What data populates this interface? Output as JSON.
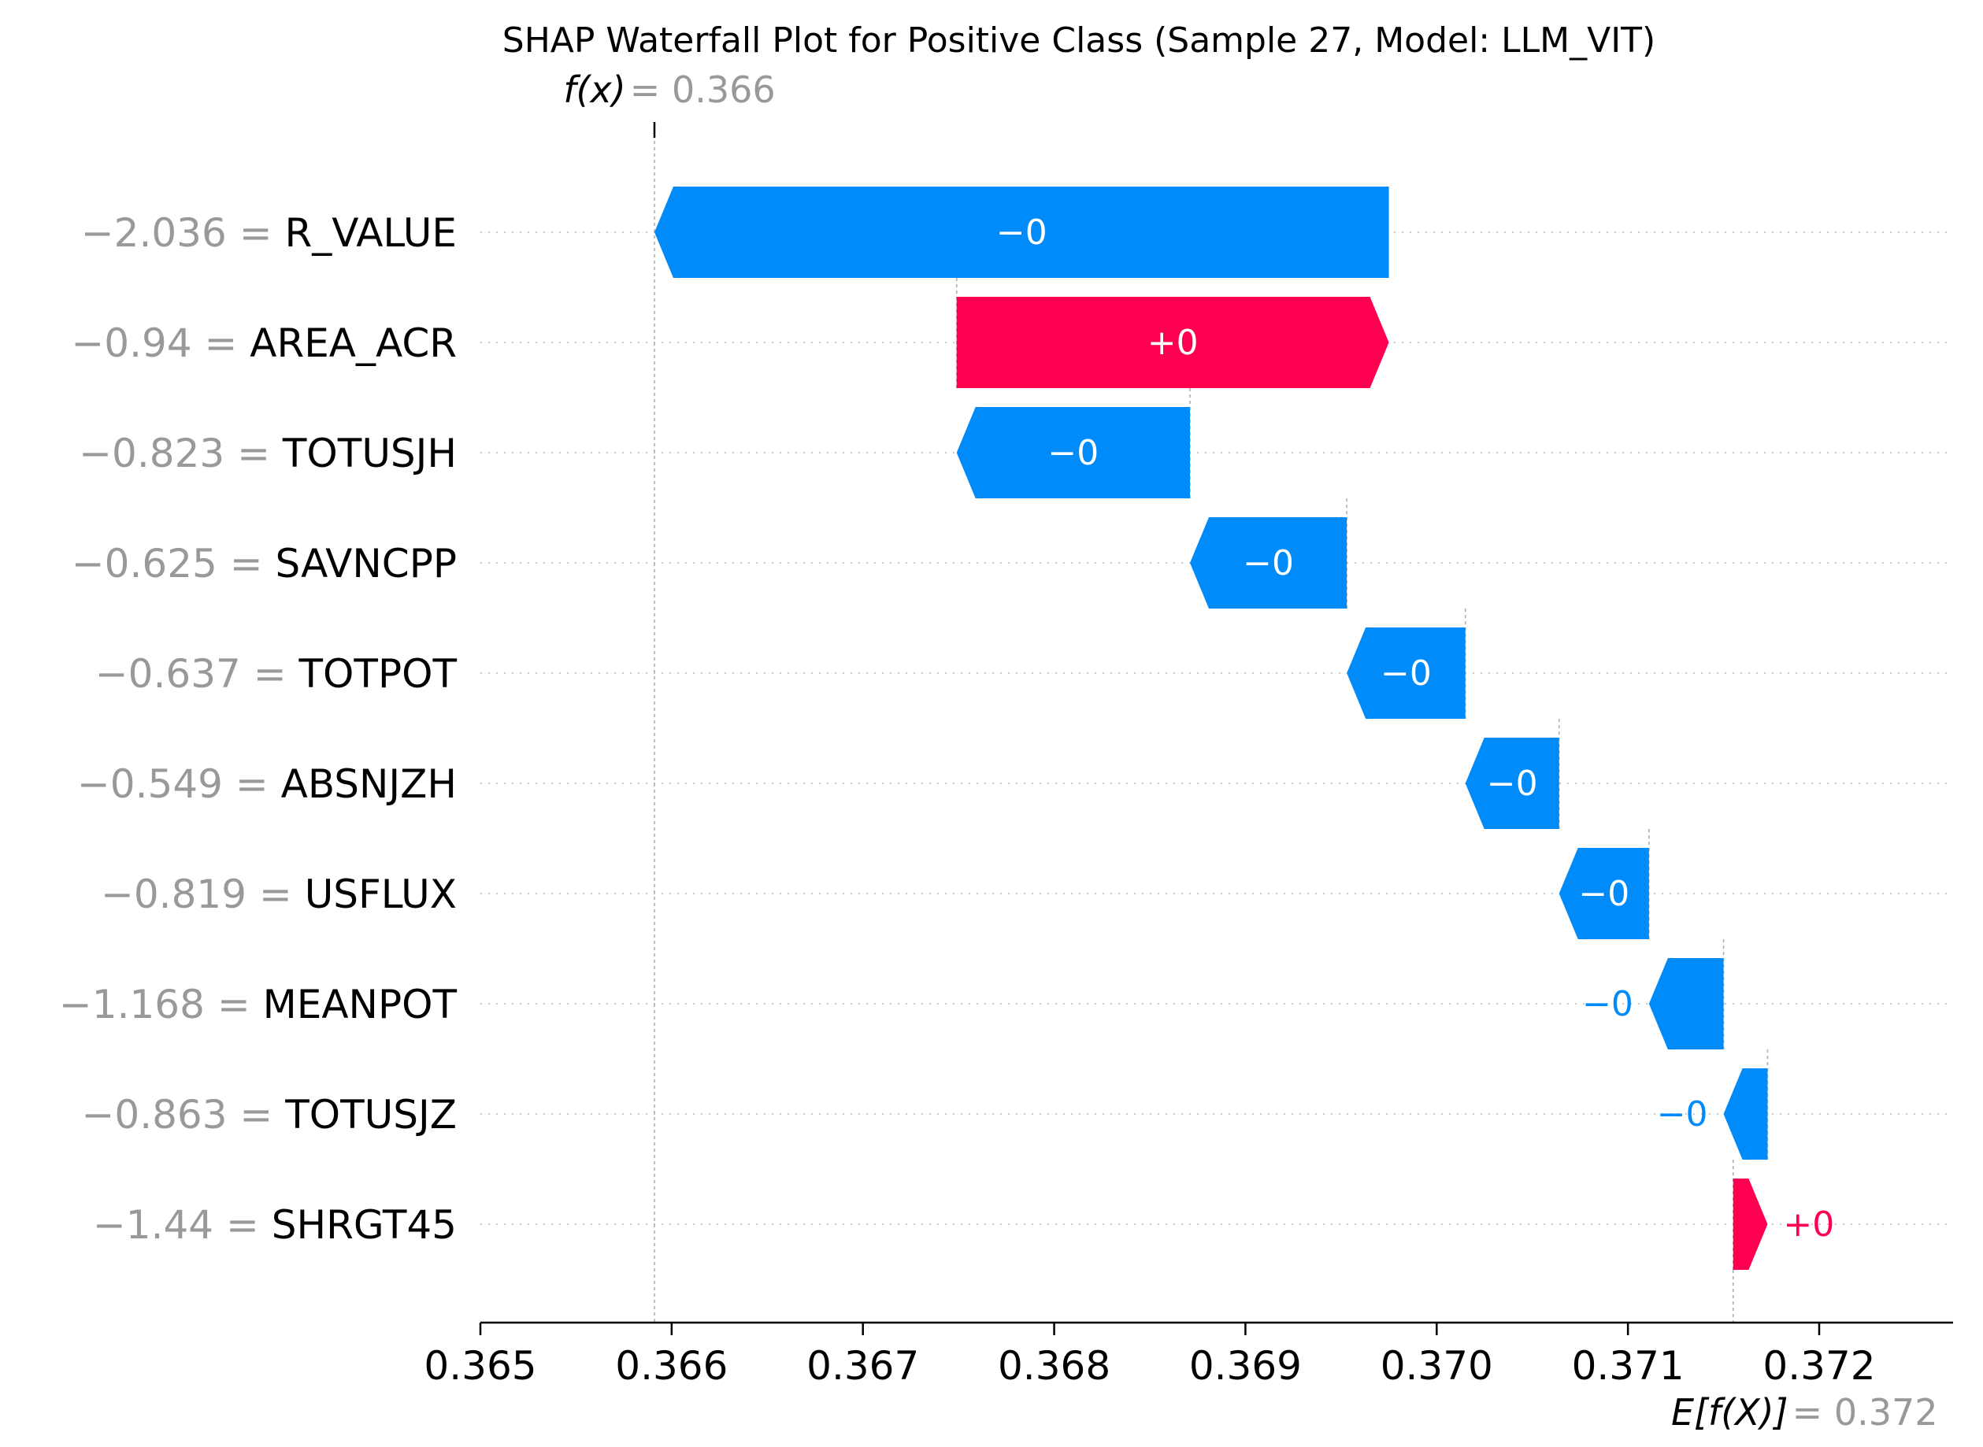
{
  "chart_data": {
    "type": "bar",
    "title": "SHAP Waterfall Plot for Positive Class (Sample 27, Model: LLM_VIT)",
    "fx": {
      "label": "f(x)",
      "value": "0.366"
    },
    "efx": {
      "label": "E[f(X)]",
      "value": "0.372"
    },
    "fx_numeric": 0.36591,
    "efx_numeric": 0.37155,
    "xlim": [
      0.365,
      0.3727
    ],
    "xticks": [
      0.365,
      0.366,
      0.367,
      0.368,
      0.369,
      0.37,
      0.371,
      0.372
    ],
    "xtick_labels": [
      "0.365",
      "0.366",
      "0.367",
      "0.368",
      "0.369",
      "0.370",
      "0.371",
      "0.372"
    ],
    "colors": {
      "positive": "#ff0051",
      "negative": "#008bfb",
      "muted": "#999999"
    },
    "features": [
      {
        "value": "−2.036",
        "name": "R_VALUE",
        "start": 0.36975,
        "end": 0.36591,
        "label": "−0"
      },
      {
        "value": "−0.94",
        "name": "AREA_ACR",
        "start": 0.36749,
        "end": 0.36975,
        "label": "+0"
      },
      {
        "value": "−0.823",
        "name": "TOTUSJH",
        "start": 0.36871,
        "end": 0.36749,
        "label": "−0"
      },
      {
        "value": "−0.625",
        "name": "SAVNCPP",
        "start": 0.36953,
        "end": 0.36871,
        "label": "−0"
      },
      {
        "value": "−0.637",
        "name": "TOTPOT",
        "start": 0.37015,
        "end": 0.36953,
        "label": "−0"
      },
      {
        "value": "−0.549",
        "name": "ABSNJZH",
        "start": 0.37064,
        "end": 0.37015,
        "label": "−0"
      },
      {
        "value": "−0.819",
        "name": "USFLUX",
        "start": 0.37111,
        "end": 0.37064,
        "label": "−0"
      },
      {
        "value": "−1.168",
        "name": "MEANPOT",
        "start": 0.3715,
        "end": 0.37111,
        "label": "−0"
      },
      {
        "value": "−0.863",
        "name": "TOTUSJZ",
        "start": 0.37173,
        "end": 0.3715,
        "label": "−0"
      },
      {
        "value": "−1.44",
        "name": "SHRGT45",
        "start": 0.37155,
        "end": 0.37173,
        "label": "+0"
      }
    ]
  }
}
